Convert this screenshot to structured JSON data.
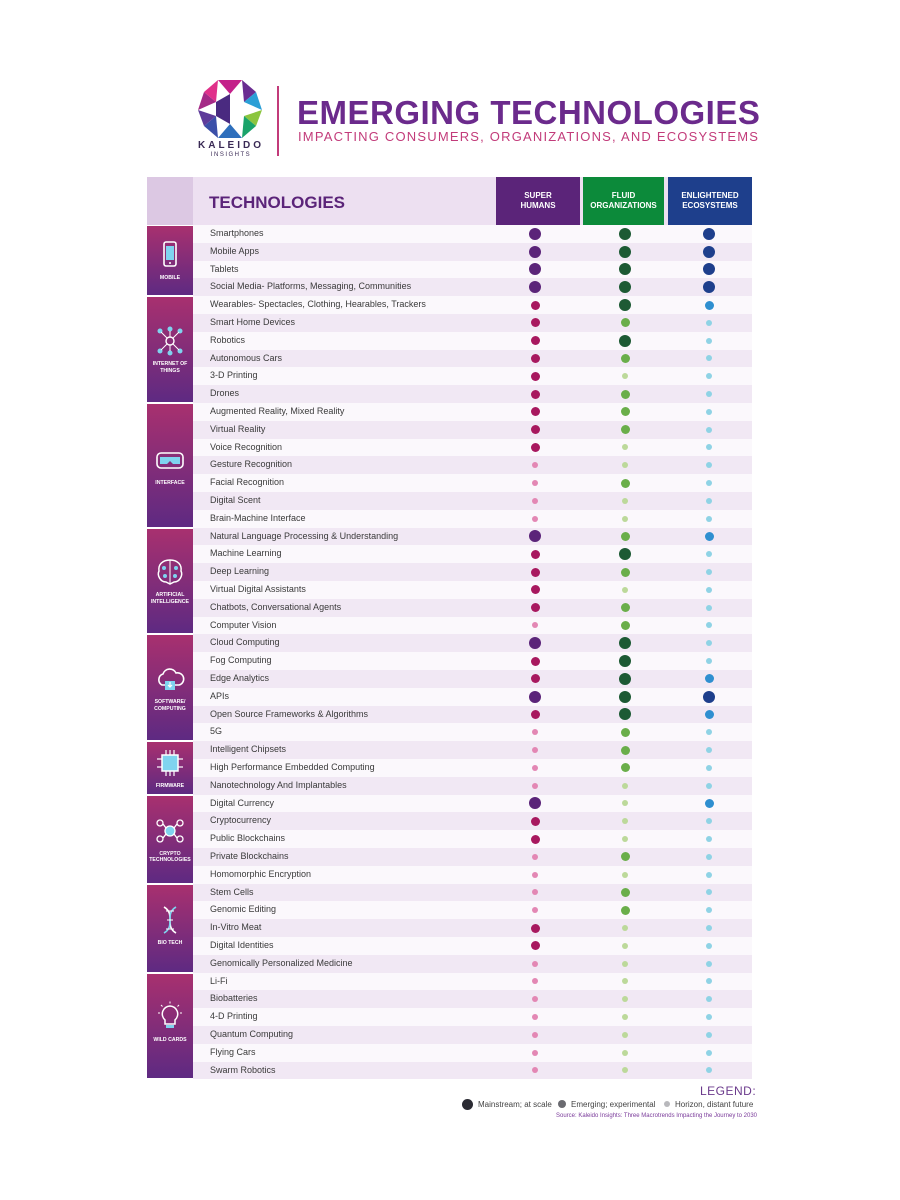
{
  "header": {
    "brand": "KALEIDO",
    "brand_sub": "INSIGHTS",
    "title": "EMERGING TECHNOLOGIES",
    "subtitle": "IMPACTING CONSUMERS, ORGANIZATIONS, AND ECOSYSTEMS"
  },
  "table": {
    "tech_header": "TECHNOLOGIES",
    "columns": [
      "SUPER HUMANS",
      "FLUID ORGANIZATIONS",
      "ENLIGHTENED ECOSYSTEMS"
    ]
  },
  "colors": {
    "purple": "#5b2479",
    "green": "#0c8a3a",
    "blue": "#1e3f8c",
    "row_even": "#f1e8f4",
    "row_odd": "#fbf8fc",
    "cat_gradient_top": "#a8306f",
    "cat_gradient_bottom": "#5e2a82"
  },
  "categories": [
    {
      "name": "MOBILE",
      "icon": "smartphone-icon",
      "start": 0,
      "count": 4
    },
    {
      "name": "INTERNET OF THINGS",
      "icon": "iot-network-icon",
      "start": 4,
      "count": 6
    },
    {
      "name": "INTERFACE",
      "icon": "vr-headset-icon",
      "start": 10,
      "count": 7
    },
    {
      "name": "ARTIFICIAL INTELLIGENCE",
      "icon": "brain-icon",
      "start": 17,
      "count": 6
    },
    {
      "name": "SOFTWARE/ COMPUTING",
      "icon": "cloud-icon",
      "start": 23,
      "count": 6
    },
    {
      "name": "FIRMWARE",
      "icon": "chip-icon",
      "start": 29,
      "count": 3
    },
    {
      "name": "CRYPTO TECHNOLOGIES",
      "icon": "blockchain-icon",
      "start": 32,
      "count": 5
    },
    {
      "name": "BIO TECH",
      "icon": "dna-icon",
      "start": 37,
      "count": 5
    },
    {
      "name": "WILD CARDS",
      "icon": "lightbulb-icon",
      "start": 42,
      "count": 6
    }
  ],
  "chart_data": {
    "type": "table",
    "scale": {
      "3": "Mainstream; at scale",
      "2": "Emerging; experimental",
      "1": "Horizon, distant future"
    },
    "columns": [
      "SUPER HUMANS",
      "FLUID ORGANIZATIONS",
      "ENLIGHTENED ECOSYSTEMS"
    ],
    "rows": [
      {
        "name": "Smartphones",
        "values": [
          3,
          3,
          3
        ]
      },
      {
        "name": "Mobile Apps",
        "values": [
          3,
          3,
          3
        ]
      },
      {
        "name": "Tablets",
        "values": [
          3,
          3,
          3
        ]
      },
      {
        "name": "Social Media- Platforms, Messaging, Communities",
        "values": [
          3,
          3,
          3
        ]
      },
      {
        "name": "Wearables- Spectacles, Clothing, Hearables, Trackers",
        "values": [
          2,
          3,
          2
        ]
      },
      {
        "name": "Smart Home Devices",
        "values": [
          2,
          2,
          1
        ]
      },
      {
        "name": "Robotics",
        "values": [
          2,
          3,
          1
        ]
      },
      {
        "name": "Autonomous Cars",
        "values": [
          2,
          2,
          1
        ]
      },
      {
        "name": "3-D Printing",
        "values": [
          2,
          1,
          1
        ]
      },
      {
        "name": "Drones",
        "values": [
          2,
          2,
          1
        ]
      },
      {
        "name": "Augmented Reality, Mixed Reality",
        "values": [
          2,
          2,
          1
        ]
      },
      {
        "name": "Virtual Reality",
        "values": [
          2,
          2,
          1
        ]
      },
      {
        "name": "Voice Recognition",
        "values": [
          2,
          1,
          1
        ]
      },
      {
        "name": "Gesture Recognition",
        "values": [
          1,
          1,
          1
        ]
      },
      {
        "name": "Facial Recognition",
        "values": [
          1,
          2,
          1
        ]
      },
      {
        "name": "Digital Scent",
        "values": [
          1,
          1,
          1
        ]
      },
      {
        "name": "Brain-Machine Interface",
        "values": [
          1,
          1,
          1
        ]
      },
      {
        "name": "Natural Language Processing & Understanding",
        "values": [
          3,
          2,
          2
        ]
      },
      {
        "name": "Machine Learning",
        "values": [
          2,
          3,
          1
        ]
      },
      {
        "name": "Deep Learning",
        "values": [
          2,
          2,
          1
        ]
      },
      {
        "name": "Virtual Digital Assistants",
        "values": [
          2,
          1,
          1
        ]
      },
      {
        "name": "Chatbots, Conversational Agents",
        "values": [
          2,
          2,
          1
        ]
      },
      {
        "name": "Computer Vision",
        "values": [
          1,
          2,
          1
        ]
      },
      {
        "name": "Cloud Computing",
        "values": [
          3,
          3,
          1
        ]
      },
      {
        "name": "Fog Computing",
        "values": [
          2,
          3,
          1
        ]
      },
      {
        "name": "Edge Analytics",
        "values": [
          2,
          3,
          2
        ]
      },
      {
        "name": "APIs",
        "values": [
          3,
          3,
          3
        ]
      },
      {
        "name": "Open Source Frameworks & Algorithms",
        "values": [
          2,
          3,
          2
        ]
      },
      {
        "name": "5G",
        "values": [
          1,
          2,
          1
        ]
      },
      {
        "name": "Intelligent Chipsets",
        "values": [
          1,
          2,
          1
        ]
      },
      {
        "name": "High Performance Embedded Computing",
        "values": [
          1,
          2,
          1
        ]
      },
      {
        "name": "Nanotechnology And Implantables",
        "values": [
          1,
          1,
          1
        ]
      },
      {
        "name": "Digital Currency",
        "values": [
          3,
          1,
          2
        ]
      },
      {
        "name": "Cryptocurrency",
        "values": [
          2,
          1,
          1
        ]
      },
      {
        "name": "Public Blockchains",
        "values": [
          2,
          1,
          1
        ]
      },
      {
        "name": "Private Blockchains",
        "values": [
          1,
          2,
          1
        ]
      },
      {
        "name": "Homomorphic Encryption",
        "values": [
          1,
          1,
          1
        ]
      },
      {
        "name": "Stem Cells",
        "values": [
          1,
          2,
          1
        ]
      },
      {
        "name": "Genomic Editing",
        "values": [
          1,
          2,
          1
        ]
      },
      {
        "name": "In-Vitro Meat",
        "values": [
          2,
          1,
          1
        ]
      },
      {
        "name": "Digital Identities",
        "values": [
          2,
          1,
          1
        ]
      },
      {
        "name": "Genomically Personalized Medicine",
        "values": [
          1,
          1,
          1
        ]
      },
      {
        "name": "Li-Fi",
        "values": [
          1,
          1,
          1
        ]
      },
      {
        "name": "Biobatteries",
        "values": [
          1,
          1,
          1
        ]
      },
      {
        "name": "4-D Printing",
        "values": [
          1,
          1,
          1
        ]
      },
      {
        "name": "Quantum Computing",
        "values": [
          1,
          1,
          1
        ]
      },
      {
        "name": "Flying Cars",
        "values": [
          1,
          1,
          1
        ]
      },
      {
        "name": "Swarm Robotics",
        "values": [
          1,
          1,
          1
        ]
      }
    ]
  },
  "legend": {
    "title": "LEGEND:",
    "items": [
      "Mainstream; at scale",
      "Emerging; experimental",
      "Horizon, distant future"
    ],
    "source": "Source: Kaleido Insights: Three Macrotrends Impacting the Journey to 2030"
  }
}
